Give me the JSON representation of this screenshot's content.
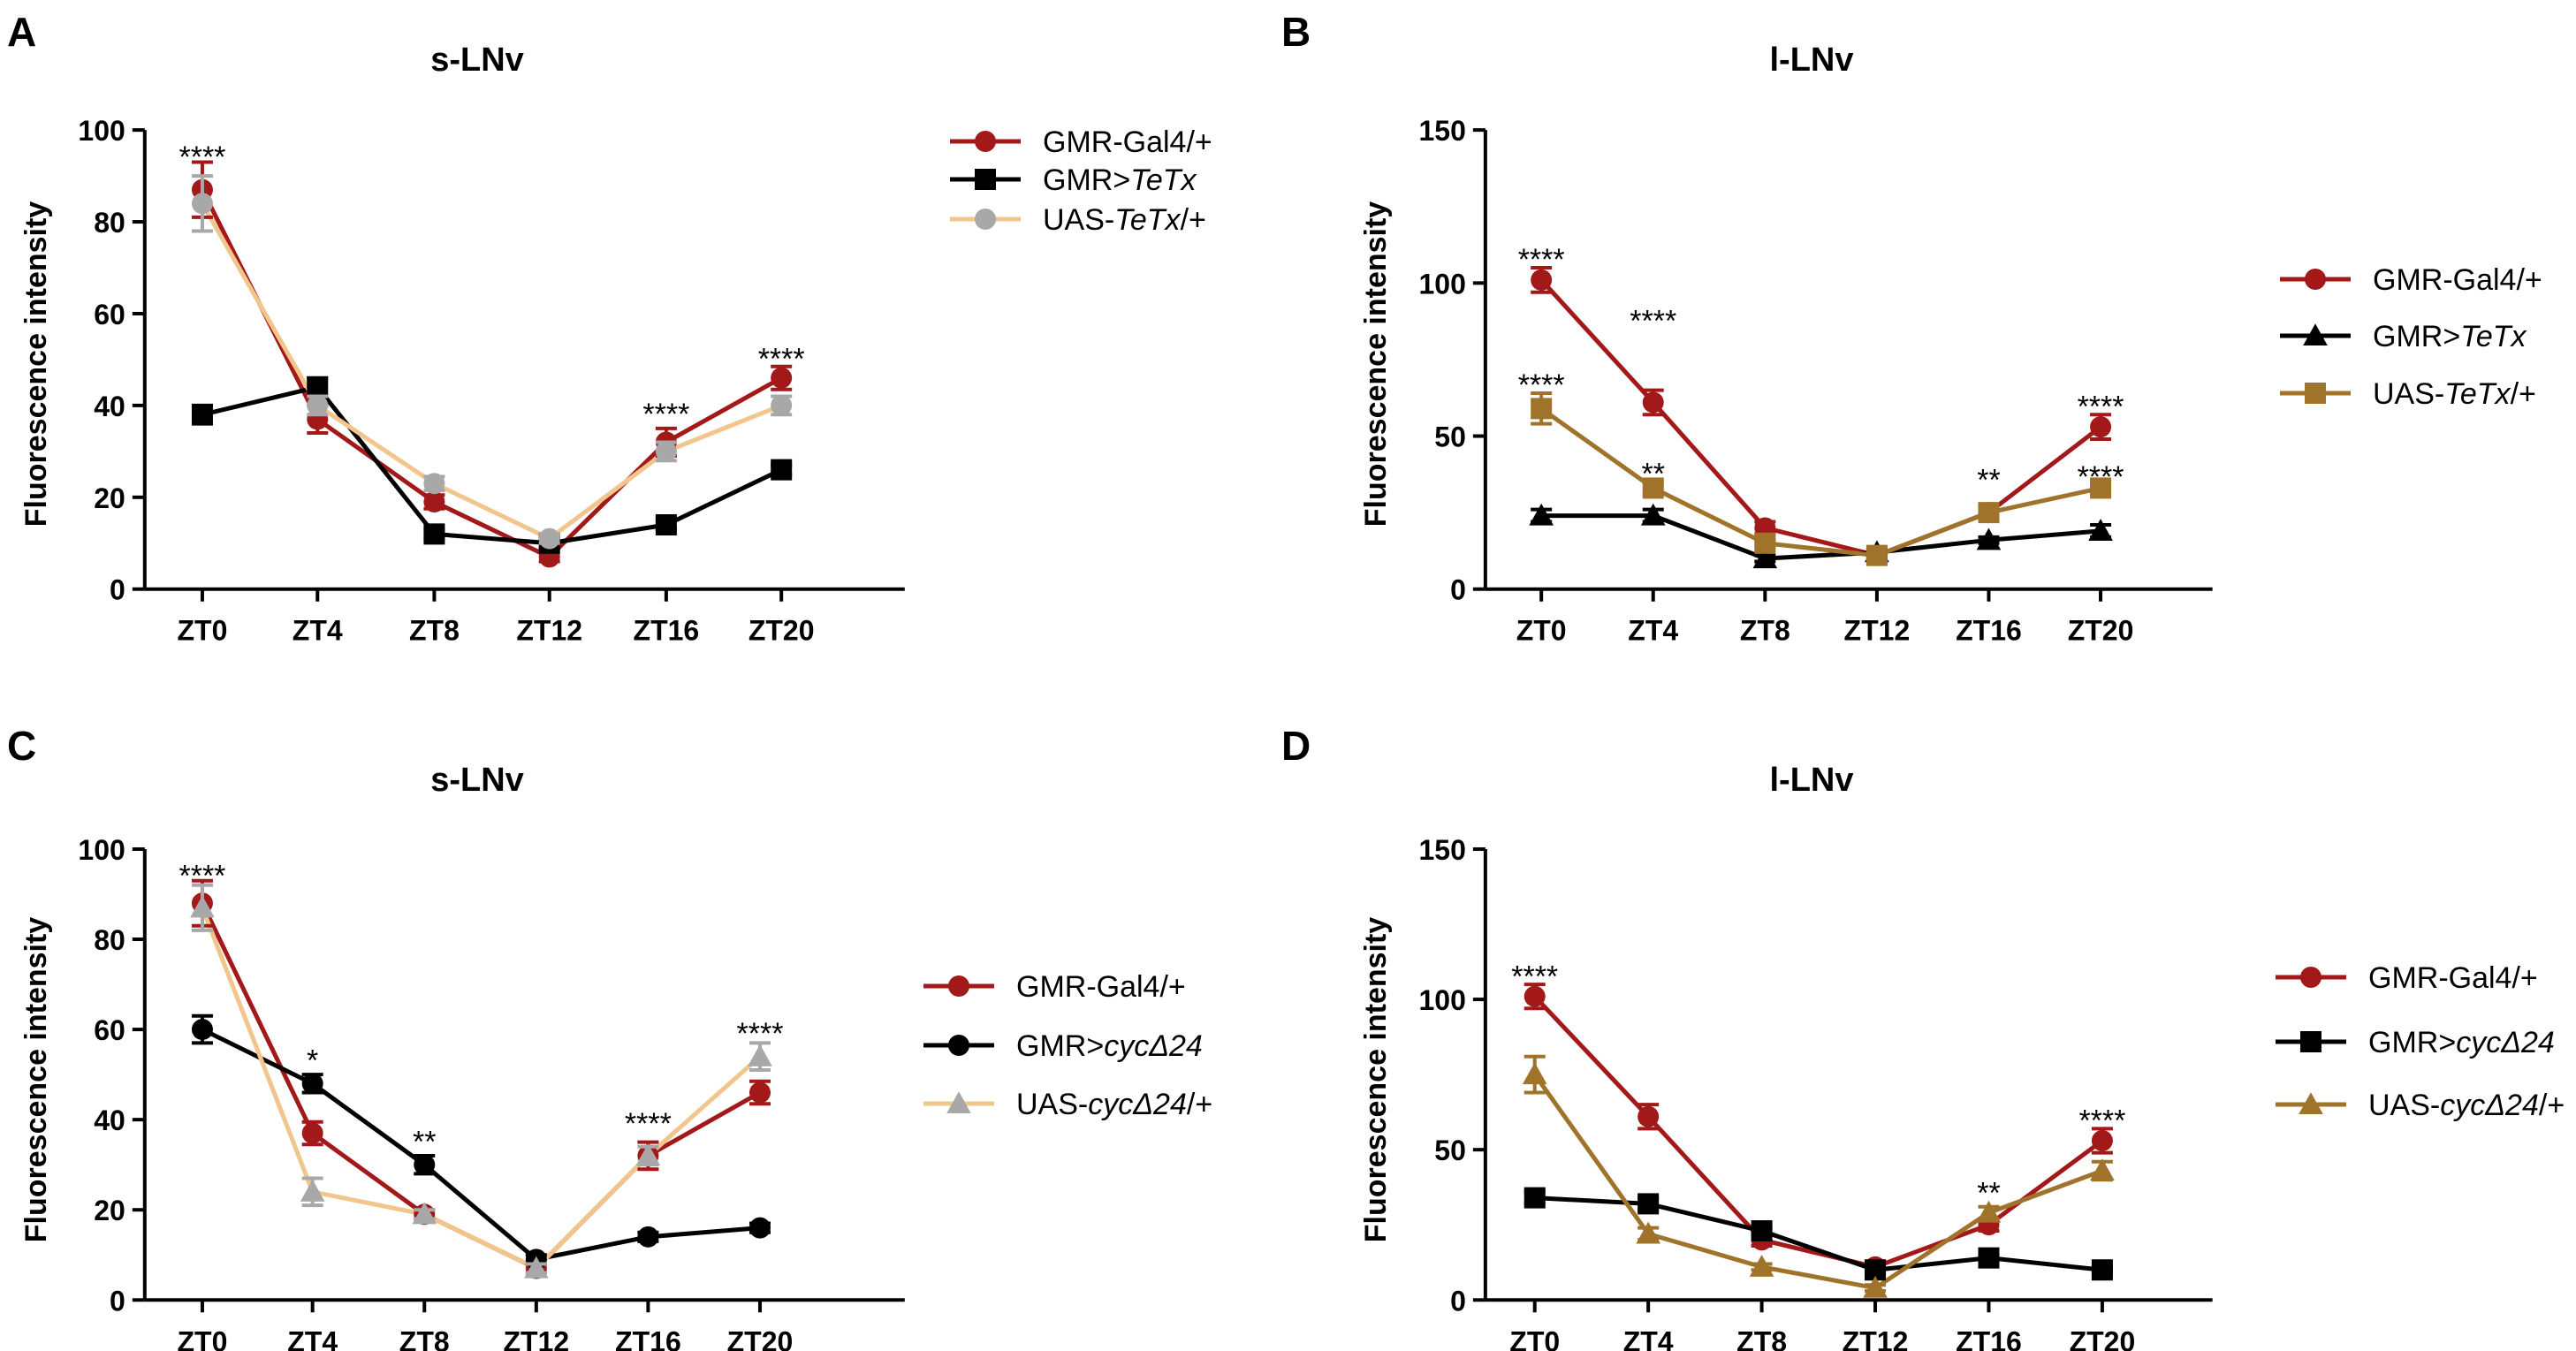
{
  "chart_data": [
    {
      "panel": "A",
      "type": "line",
      "title": "s-LNv",
      "xlabel": "",
      "ylabel": "Fluorescence intensity",
      "categories": [
        "ZT0",
        "ZT4",
        "ZT8",
        "ZT12",
        "ZT16",
        "ZT20"
      ],
      "ylim": [
        0,
        100
      ],
      "yticks": [
        0,
        20,
        40,
        60,
        80,
        100
      ],
      "series": [
        {
          "name_plain": "GMR-Gal4/+",
          "name_italic": "",
          "name_suffix": "",
          "color": "#a31818",
          "marker": "circle",
          "values": [
            87,
            37,
            19,
            7,
            32,
            46
          ],
          "errors": [
            6,
            3,
            1.5,
            1,
            3,
            2.5
          ]
        },
        {
          "name_plain": "GMR>",
          "name_italic": "TeTx",
          "name_suffix": "",
          "color": "#000000",
          "marker": "square",
          "values": [
            38,
            44,
            12,
            10,
            14,
            26
          ],
          "errors": [
            2,
            2,
            1,
            1,
            1,
            1
          ]
        },
        {
          "name_plain": "UAS-",
          "name_italic": "TeTx",
          "name_suffix": "/+",
          "color": "#f2c58c",
          "marker": "circle",
          "marker_color": "#a8a8a8",
          "values": [
            84,
            40,
            23,
            11,
            30,
            40
          ],
          "errors": [
            6,
            2,
            1.5,
            1,
            2,
            2
          ]
        }
      ],
      "annotations": [
        {
          "category": "ZT0",
          "text": "****",
          "y": 95
        },
        {
          "category": "ZT16",
          "text": "****",
          "y": 39
        },
        {
          "category": "ZT20",
          "text": "****",
          "y": 51
        }
      ],
      "legend": "right"
    },
    {
      "panel": "B",
      "type": "line",
      "title": "l-LNv",
      "xlabel": "",
      "ylabel": "Fluorescence intensity",
      "categories": [
        "ZT0",
        "ZT4",
        "ZT8",
        "ZT12",
        "ZT16",
        "ZT20"
      ],
      "ylim": [
        0,
        150
      ],
      "yticks": [
        0,
        50,
        100,
        150
      ],
      "series": [
        {
          "name_plain": "GMR-Gal4/+",
          "name_italic": "",
          "name_suffix": "",
          "color": "#a31818",
          "marker": "circle",
          "values": [
            101,
            61,
            20,
            11,
            25,
            53
          ],
          "errors": [
            4,
            4,
            2,
            1,
            2,
            4
          ]
        },
        {
          "name_plain": "GMR>",
          "name_italic": "TeTx",
          "name_suffix": "",
          "color": "#000000",
          "marker": "triangle",
          "values": [
            24,
            24,
            10,
            12,
            16,
            19
          ],
          "errors": [
            2,
            2,
            1,
            1,
            1,
            2
          ]
        },
        {
          "name_plain": "UAS-",
          "name_italic": "TeTx",
          "name_suffix": "/+",
          "color": "#a0732a",
          "marker": "square",
          "values": [
            59,
            33,
            15,
            11,
            25,
            33
          ],
          "errors": [
            5,
            2,
            1,
            1,
            2,
            2
          ]
        }
      ],
      "annotations": [
        {
          "category": "ZT0",
          "text": "****",
          "y": 109
        },
        {
          "category": "ZT4",
          "text": "****",
          "y": 89
        },
        {
          "category": "ZT0",
          "text": "****",
          "y": 68
        },
        {
          "category": "ZT4",
          "text": "**",
          "y": 39
        },
        {
          "category": "ZT16",
          "text": "**",
          "y": 37
        },
        {
          "category": "ZT20",
          "text": "****",
          "y": 61
        },
        {
          "category": "ZT20",
          "text": "****",
          "y": 38
        }
      ],
      "legend": "right"
    },
    {
      "panel": "C",
      "type": "line",
      "title": "s-LNv",
      "xlabel": "",
      "ylabel": "Fluorescence intensity",
      "categories": [
        "ZT0",
        "ZT4",
        "ZT8",
        "ZT12",
        "ZT16",
        "ZT20"
      ],
      "ylim": [
        0,
        100
      ],
      "yticks": [
        0,
        20,
        40,
        60,
        80,
        100
      ],
      "series": [
        {
          "name_plain": "GMR-Gal4/+",
          "name_italic": "",
          "name_suffix": "",
          "color": "#a31818",
          "marker": "circle",
          "values": [
            88,
            37,
            19,
            7,
            32,
            46
          ],
          "errors": [
            5,
            2.5,
            1,
            1,
            3,
            2.5
          ]
        },
        {
          "name_plain": "GMR>",
          "name_italic": "cycΔ24",
          "name_suffix": "",
          "color": "#000000",
          "marker": "circle",
          "values": [
            60,
            48,
            30,
            9,
            14,
            16
          ],
          "errors": [
            3,
            2,
            2,
            1,
            1,
            1
          ]
        },
        {
          "name_plain": "UAS-",
          "name_italic": "cycΔ24",
          "name_suffix": "/+",
          "color": "#f2c58c",
          "marker": "triangle",
          "marker_color": "#a8a8a8",
          "values": [
            87,
            24,
            19,
            7,
            32,
            54
          ],
          "errors": [
            5,
            3,
            1,
            1,
            2,
            3
          ]
        }
      ],
      "annotations": [
        {
          "category": "ZT0",
          "text": "****",
          "y": 95
        },
        {
          "category": "ZT4",
          "text": "*",
          "y": 54
        },
        {
          "category": "ZT8",
          "text": "**",
          "y": 36
        },
        {
          "category": "ZT16",
          "text": "****",
          "y": 40
        },
        {
          "category": "ZT20",
          "text": "****",
          "y": 60
        }
      ],
      "legend": "right"
    },
    {
      "panel": "D",
      "type": "line",
      "title": "l-LNv",
      "xlabel": "",
      "ylabel": "Fluorescence intensity",
      "categories": [
        "ZT0",
        "ZT4",
        "ZT8",
        "ZT12",
        "ZT16",
        "ZT20"
      ],
      "ylim": [
        0,
        150
      ],
      "yticks": [
        0,
        50,
        100,
        150
      ],
      "series": [
        {
          "name_plain": "GMR-Gal4/+",
          "name_italic": "",
          "name_suffix": "",
          "color": "#a31818",
          "marker": "circle",
          "values": [
            101,
            61,
            20,
            11,
            25,
            53
          ],
          "errors": [
            4,
            4,
            2,
            1,
            2,
            4
          ]
        },
        {
          "name_plain": "GMR>",
          "name_italic": "cycΔ24",
          "name_suffix": "",
          "color": "#000000",
          "marker": "square",
          "values": [
            34,
            32,
            23,
            10,
            14,
            10
          ],
          "errors": [
            2,
            2,
            1,
            1,
            1,
            1
          ]
        },
        {
          "name_plain": "UAS-",
          "name_italic": "cycΔ24",
          "name_suffix": "/+",
          "color": "#a0732a",
          "marker": "triangle",
          "values": [
            75,
            22,
            11,
            4,
            29,
            43
          ],
          "errors": [
            6,
            2,
            1,
            1,
            2,
            3
          ]
        }
      ],
      "annotations": [
        {
          "category": "ZT0",
          "text": "****",
          "y": 109
        },
        {
          "category": "ZT16",
          "text": "**",
          "y": 37
        },
        {
          "category": "ZT20",
          "text": "****",
          "y": 61
        }
      ],
      "legend": "right"
    }
  ]
}
